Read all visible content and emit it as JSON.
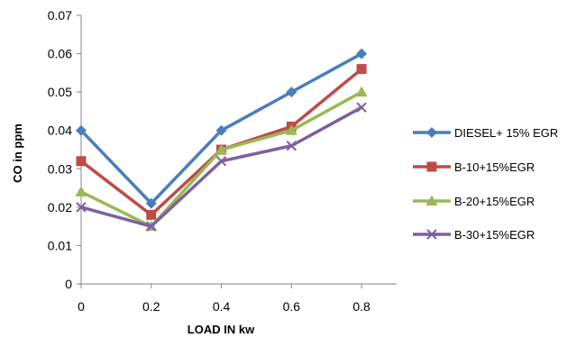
{
  "chart_data": {
    "type": "line",
    "title": "",
    "xlabel": "LOAD IN kw",
    "ylabel": "CO in ppm",
    "x": [
      0,
      0.2,
      0.4,
      0.6,
      0.8
    ],
    "xlim": [
      0,
      0.9
    ],
    "ylim": [
      0,
      0.07
    ],
    "x_ticks": [
      "0",
      "0.2",
      "0.4",
      "0.6",
      "0.8"
    ],
    "y_ticks": [
      "0",
      "0.01",
      "0.02",
      "0.03",
      "0.04",
      "0.05",
      "0.06",
      "0.07"
    ],
    "grid": false,
    "legend_position": "right",
    "series": [
      {
        "name": "DIESEL+ 15% EGR",
        "values": [
          0.04,
          0.021,
          0.04,
          0.05,
          0.06
        ],
        "color": "#4a7ebb",
        "marker": "diamond"
      },
      {
        "name": "B-10+15%EGR",
        "values": [
          0.032,
          0.018,
          0.035,
          0.041,
          0.056
        ],
        "color": "#be4b48",
        "marker": "square"
      },
      {
        "name": "B-20+15%EGR",
        "values": [
          0.024,
          0.015,
          0.035,
          0.04,
          0.05
        ],
        "color": "#98b954",
        "marker": "triangle"
      },
      {
        "name": "B-30+15%EGR",
        "values": [
          0.02,
          0.015,
          0.032,
          0.036,
          0.046
        ],
        "color": "#7d60a0",
        "marker": "x"
      }
    ]
  }
}
